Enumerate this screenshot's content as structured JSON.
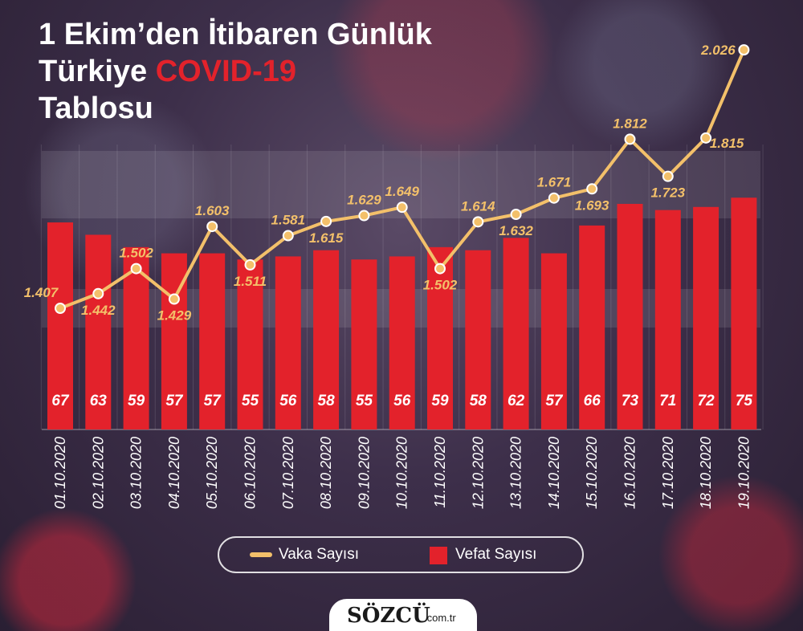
{
  "title": {
    "line1": "1 Ekim’den İtibaren Günlük",
    "line2_pre": "Türkiye ",
    "line2_accent": "COVID-19",
    "line3": "Tablosu"
  },
  "colors": {
    "line": "#f3c06a",
    "bar": "#e3222b",
    "accent": "#e3222b"
  },
  "chart_data": {
    "type": "bar",
    "categories": [
      "01.10.2020",
      "02.10.2020",
      "03.10.2020",
      "04.10.2020",
      "05.10.2020",
      "06.10.2020",
      "07.10.2020",
      "08.10.2020",
      "09.10.2020",
      "10.10.2020",
      "11.10.2020",
      "12.10.2020",
      "13.10.2020",
      "14.10.2020",
      "15.10.2020",
      "16.10.2020",
      "17.10.2020",
      "18.10.2020",
      "19.10.2020"
    ],
    "series": [
      {
        "name": "Vaka Sayısı",
        "type": "line",
        "values": [
          1407,
          1442,
          1502,
          1429,
          1603,
          1511,
          1581,
          1615,
          1629,
          1649,
          1502,
          1614,
          1632,
          1671,
          1693,
          1812,
          1723,
          1815,
          2026
        ],
        "labels": [
          "1.407",
          "1.442",
          "1.502",
          "1.429",
          "1.603",
          "1.511",
          "1.581",
          "1.615",
          "1.629",
          "1.649",
          "1.502",
          "1.614",
          "1.632",
          "1.671",
          "1.693",
          "1.812",
          "1.723",
          "1.815",
          "2.026"
        ]
      },
      {
        "name": "Vefat Sayısı",
        "type": "bar",
        "values": [
          67,
          63,
          59,
          57,
          57,
          55,
          56,
          58,
          55,
          56,
          59,
          58,
          62,
          57,
          66,
          73,
          71,
          72,
          75
        ]
      }
    ],
    "legend": [
      "Vaka Sayısı",
      "Vefat Sayısı"
    ]
  },
  "logo": {
    "brand": "SÖZCÜ",
    "tld": ".com.tr"
  }
}
